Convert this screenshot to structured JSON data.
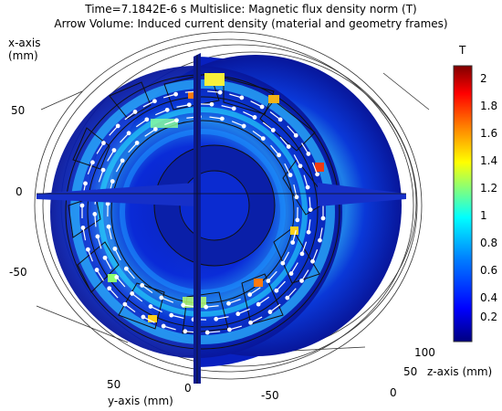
{
  "title_line1": "Time=7.1842E-6 s   Multislice: Magnetic flux density norm (T)",
  "title_line2": "Arrow Volume: Induced current density (material and geometry frames)",
  "x_axis": {
    "label": "x-axis",
    "unit": "(mm)",
    "ticks": [
      "50",
      "0",
      "-50"
    ]
  },
  "y_axis": {
    "label": "y-axis (mm)",
    "ticks": [
      "50",
      "0",
      "-50"
    ]
  },
  "z_axis": {
    "label": "z-axis (mm)",
    "ticks": [
      "100",
      "50",
      "0"
    ]
  },
  "colorbar": {
    "unit": "T",
    "ticks": [
      "2",
      "1.8",
      "1.6",
      "1.4",
      "1.2",
      "1",
      "0.8",
      "0.6",
      "0.4",
      "0.2"
    ],
    "colors": [
      "#00007f",
      "#0000ff",
      "#007fff",
      "#00ffff",
      "#7fff7f",
      "#ffff00",
      "#ff7f00",
      "#ff0000",
      "#7f0000"
    ]
  }
}
